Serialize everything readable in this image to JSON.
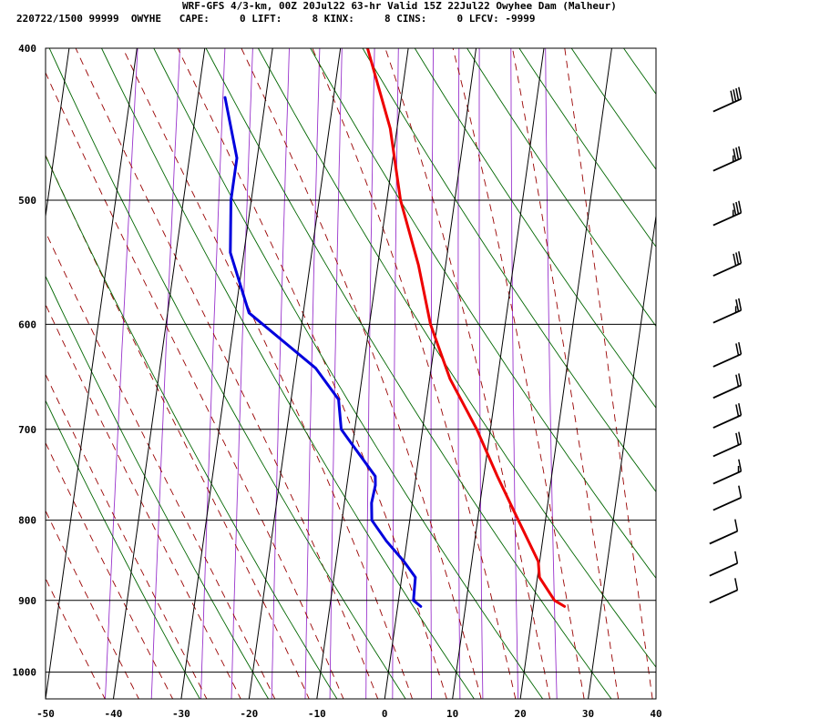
{
  "header": {
    "title": "WRF-GFS 4/3-km, 00Z 20Jul22 63-hr Valid 15Z 22Jul22 Owyhee Dam (Malheur)",
    "stats": "220722/1500 99999  OWYHE   CAPE:     0 LIFT:     8 KINX:     8 CINS:     0 LFCV: -9999"
  },
  "chart_data": {
    "type": "line",
    "diagram": "Skew-T log-P",
    "x_axis": {
      "ticks": [
        -50,
        -40,
        -30,
        -20,
        -10,
        0,
        10,
        20,
        30,
        40
      ],
      "range": [
        -50,
        40
      ]
    },
    "y_axis": {
      "ticks": [
        400,
        500,
        600,
        700,
        800,
        900,
        1000
      ],
      "range": [
        400,
        1040
      ],
      "scale": "log"
    },
    "grid": true,
    "colors": {
      "temperature": "#ee0000",
      "dewpoint": "#0000dd",
      "dry_adiabat": "#006600",
      "moist_adiabat": "#990000",
      "mixing_ratio": "#9933cc",
      "isobar_isotherm": "#000000"
    },
    "series": [
      {
        "key": "temperature",
        "points": [
          [
            400,
            -16
          ],
          [
            450,
            -11
          ],
          [
            500,
            -8
          ],
          [
            550,
            -4
          ],
          [
            600,
            -1
          ],
          [
            650,
            3
          ],
          [
            700,
            8
          ],
          [
            750,
            12
          ],
          [
            800,
            16
          ],
          [
            850,
            19.8
          ],
          [
            870,
            20.3
          ],
          [
            900,
            23
          ],
          [
            908,
            24.6
          ]
        ]
      },
      {
        "key": "dewpoint",
        "points": [
          [
            430,
            -36
          ],
          [
            470,
            -33
          ],
          [
            500,
            -33
          ],
          [
            540,
            -32
          ],
          [
            590,
            -28
          ],
          [
            640,
            -17
          ],
          [
            670,
            -13
          ],
          [
            700,
            -12
          ],
          [
            750,
            -6
          ],
          [
            760,
            -5.8
          ],
          [
            780,
            -6
          ],
          [
            800,
            -5.6
          ],
          [
            825,
            -3
          ],
          [
            850,
            0
          ],
          [
            870,
            2
          ],
          [
            900,
            2.2
          ],
          [
            908,
            3.4
          ]
        ]
      }
    ],
    "wind_barbs": [
      {
        "p": 440,
        "speed_kt": 40
      },
      {
        "p": 480,
        "speed_kt": 35
      },
      {
        "p": 520,
        "speed_kt": 35
      },
      {
        "p": 560,
        "speed_kt": 30
      },
      {
        "p": 600,
        "speed_kt": 25
      },
      {
        "p": 640,
        "speed_kt": 20
      },
      {
        "p": 670,
        "speed_kt": 20
      },
      {
        "p": 700,
        "speed_kt": 20
      },
      {
        "p": 730,
        "speed_kt": 20
      },
      {
        "p": 760,
        "speed_kt": 15
      },
      {
        "p": 790,
        "speed_kt": 10
      },
      {
        "p": 830,
        "speed_kt": 10
      },
      {
        "p": 870,
        "speed_kt": 10
      },
      {
        "p": 905,
        "speed_kt": 10
      }
    ]
  }
}
